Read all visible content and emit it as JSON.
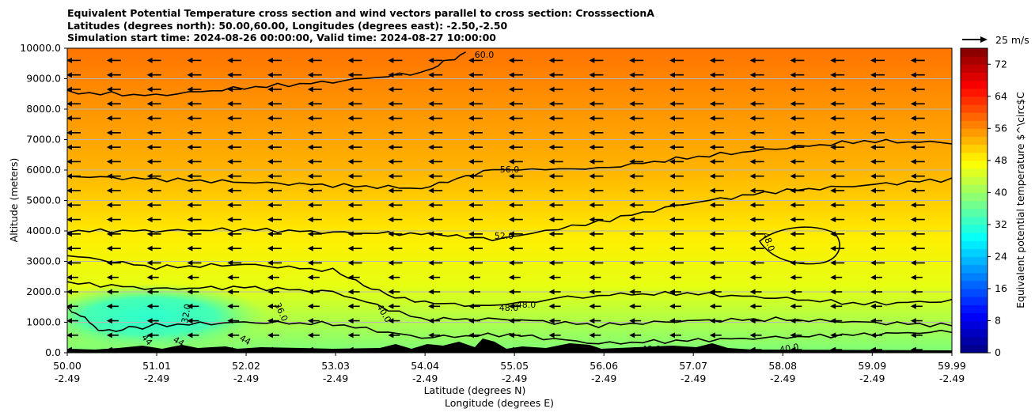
{
  "chart_data": {
    "type": "contour-cross-section",
    "title_lines": [
      "Equivalent Potential Temperature cross section and wind vectors parallel to cross section: CrosssectionA",
      "Latitudes (degrees north): 50.00,60.00, Longitudes (degrees east): -2.50,-2.50",
      "Simulation start time: 2024-08-26 00:00:00, Valid time: 2024-08-27 10:00:00"
    ],
    "ylabel": "Altitude (meters)",
    "xlabel_lat": "Latitude (degrees N)",
    "xlabel_lon": "Longitude (degrees E)",
    "ylim": [
      0,
      10000
    ],
    "xlim": [
      50.0,
      59.99
    ],
    "y_ticks": [
      "0.0",
      "1000.0",
      "2000.0",
      "3000.0",
      "4000.0",
      "5000.0",
      "6000.0",
      "7000.0",
      "8000.0",
      "9000.0",
      "10000.0"
    ],
    "y_tick_values": [
      0,
      1000,
      2000,
      3000,
      4000,
      5000,
      6000,
      7000,
      8000,
      9000,
      10000
    ],
    "x_tick_values": [
      50.0,
      51.01,
      52.02,
      53.03,
      54.04,
      55.05,
      56.06,
      57.07,
      58.08,
      59.09,
      59.99
    ],
    "x_ticks_lat": [
      "50.00",
      "51.01",
      "52.02",
      "53.03",
      "54.04",
      "55.05",
      "56.06",
      "57.07",
      "58.08",
      "59.09",
      "59.99"
    ],
    "x_ticks_lon": [
      "-2.49",
      "-2.49",
      "-2.49",
      "-2.49",
      "-2.49",
      "-2.49",
      "-2.49",
      "-2.49",
      "-2.49",
      "-2.49",
      "-2.49"
    ],
    "colorbar": {
      "label": "Equivalent potential temperature $^\\circ$C",
      "range": [
        0,
        76
      ],
      "ticks": [
        "0",
        "8",
        "16",
        "24",
        "32",
        "40",
        "48",
        "56",
        "64",
        "72"
      ],
      "tick_values": [
        0,
        8,
        16,
        24,
        32,
        40,
        48,
        56,
        64,
        72
      ],
      "colormap": "jet"
    },
    "quiver_key": {
      "label": "25 m/s",
      "speed": 25
    },
    "wind_direction": "toward decreasing latitude",
    "contour_levels": [
      {
        "level": 60,
        "label": "60.0",
        "heights": [
          [
            50.0,
            8550
          ],
          [
            51.0,
            8450
          ],
          [
            52.0,
            8700
          ],
          [
            53.0,
            8900
          ],
          [
            54.0,
            9200
          ],
          [
            54.5,
            9850
          ]
        ]
      },
      {
        "level": 56,
        "label": "56.0",
        "heights": [
          [
            50.0,
            5800
          ],
          [
            51.0,
            5700
          ],
          [
            52.0,
            5600
          ],
          [
            53.0,
            5500
          ],
          [
            54.0,
            5400
          ],
          [
            54.8,
            6000
          ],
          [
            56.0,
            6050
          ],
          [
            57.0,
            6400
          ],
          [
            58.0,
            6700
          ],
          [
            59.0,
            6950
          ],
          [
            59.99,
            6900
          ]
        ]
      },
      {
        "level": 52,
        "label": "52.0",
        "heights": [
          [
            50.0,
            4000
          ],
          [
            51.0,
            4000
          ],
          [
            52.0,
            4050
          ],
          [
            53.0,
            3950
          ],
          [
            54.0,
            3900
          ],
          [
            54.8,
            3700
          ],
          [
            56.0,
            4300
          ],
          [
            57.0,
            4900
          ],
          [
            58.0,
            5300
          ],
          [
            59.0,
            5500
          ],
          [
            59.99,
            5700
          ]
        ]
      },
      {
        "level": 48,
        "label": "48.0",
        "heights": [
          [
            50.0,
            3200
          ],
          [
            51.0,
            2800
          ],
          [
            52.0,
            2900
          ],
          [
            53.0,
            2700
          ],
          [
            53.7,
            1800
          ],
          [
            54.6,
            1500
          ],
          [
            56.0,
            1900
          ],
          [
            57.0,
            1950
          ],
          [
            58.0,
            1800
          ],
          [
            59.0,
            1600
          ],
          [
            59.99,
            1700
          ]
        ]
      },
      {
        "level": 44,
        "label": "44.0",
        "heights": [
          [
            50.0,
            2300
          ],
          [
            51.0,
            2100
          ],
          [
            52.0,
            2150
          ],
          [
            53.0,
            2000
          ],
          [
            54.0,
            1100
          ],
          [
            55.0,
            1100
          ],
          [
            56.0,
            900
          ],
          [
            57.0,
            1050
          ],
          [
            58.0,
            1100
          ],
          [
            59.0,
            1000
          ],
          [
            59.99,
            900
          ]
        ]
      },
      {
        "level": 40,
        "label": "40.0",
        "heights": [
          [
            50.0,
            1500
          ],
          [
            50.4,
            700
          ],
          [
            51.0,
            900
          ],
          [
            52.0,
            1000
          ],
          [
            53.0,
            950
          ],
          [
            54.0,
            500
          ],
          [
            55.0,
            600
          ],
          [
            56.0,
            300
          ],
          [
            57.0,
            400
          ],
          [
            58.0,
            500
          ],
          [
            59.0,
            600
          ],
          [
            59.99,
            700
          ]
        ]
      }
    ],
    "contour_labels": [
      "60.0",
      "56.0",
      "52.0",
      "48.0",
      "48.0",
      "48.0",
      "40.0",
      "40.0",
      "40.0",
      "32.0",
      "36.0",
      "44",
      "44",
      "44"
    ]
  }
}
